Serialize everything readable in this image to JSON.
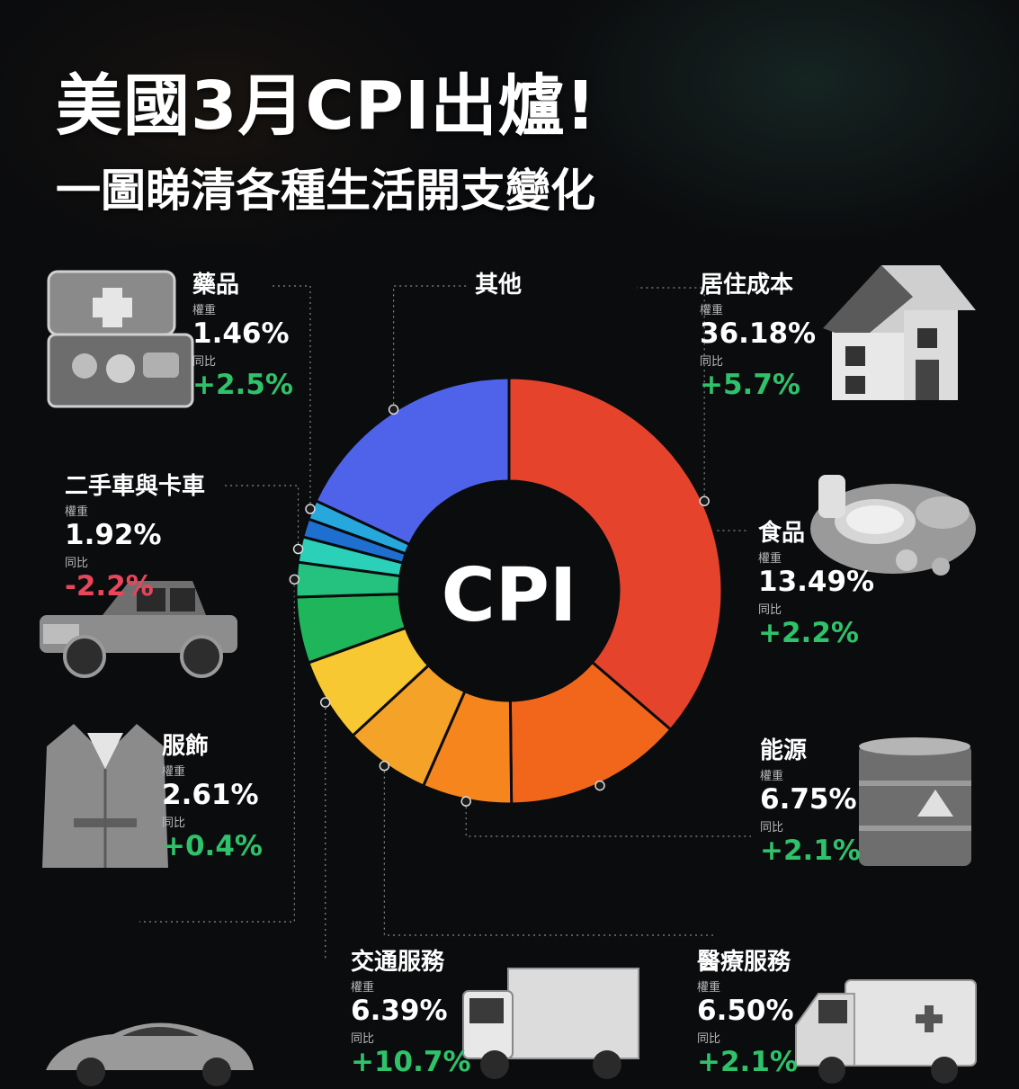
{
  "header": {
    "title": "美國3月CPI出爐!",
    "subtitle": "一圖睇清各種生活開支變化"
  },
  "labels": {
    "weight": "權重",
    "yoy": "同比"
  },
  "colors": {
    "positive": "#2fc26a",
    "negative": "#e8465a"
  },
  "chart_data": {
    "type": "pie",
    "center_label": "CPI",
    "slices": [
      {
        "name": "居住成本",
        "weight": "36.18%",
        "change": "+5.7%",
        "value": 36.18,
        "color": "#e5432c"
      },
      {
        "name": "食品",
        "weight": "13.49%",
        "change": "+2.2%",
        "value": 13.49,
        "color": "#f2661c"
      },
      {
        "name": "能源",
        "weight": "6.75%",
        "change": "+2.1%",
        "value": 6.75,
        "color": "#f5851c"
      },
      {
        "name": "醫療服務",
        "weight": "6.50%",
        "change": "+2.1%",
        "value": 6.5,
        "color": "#f5a229"
      },
      {
        "name": "交通服務",
        "weight": "6.39%",
        "change": "+10.7%",
        "value": 6.39,
        "color": "#f7c832"
      },
      {
        "name": "服飾",
        "weight": "2.61%",
        "change": "+0.4%",
        "value": 2.61,
        "color": "#24c27e"
      },
      {
        "name": "二手車與卡車",
        "weight": "1.92%",
        "change": "-2.2%",
        "value": 1.92,
        "color": "#2ad0b8"
      },
      {
        "name": "藥品",
        "weight": "1.46%",
        "change": "+2.5%",
        "value": 1.46,
        "color": "#27a8dc"
      },
      {
        "name": "其他",
        "weight": "",
        "change": "",
        "value": 18.0,
        "color": "#4e63ea"
      }
    ],
    "display_order": [
      "居住成本",
      "食品",
      "能源",
      "醫療服務",
      "交通服務",
      "unlabeled",
      "服飾",
      "二手車與卡車",
      "unlabeled",
      "藥品",
      "其他"
    ],
    "extra_slices": [
      {
        "after": "交通服務",
        "value": 5.0,
        "color": "#1fb55a"
      },
      {
        "after": "二手車與卡車",
        "value": 1.4,
        "color": "#1f6fd0"
      }
    ]
  }
}
